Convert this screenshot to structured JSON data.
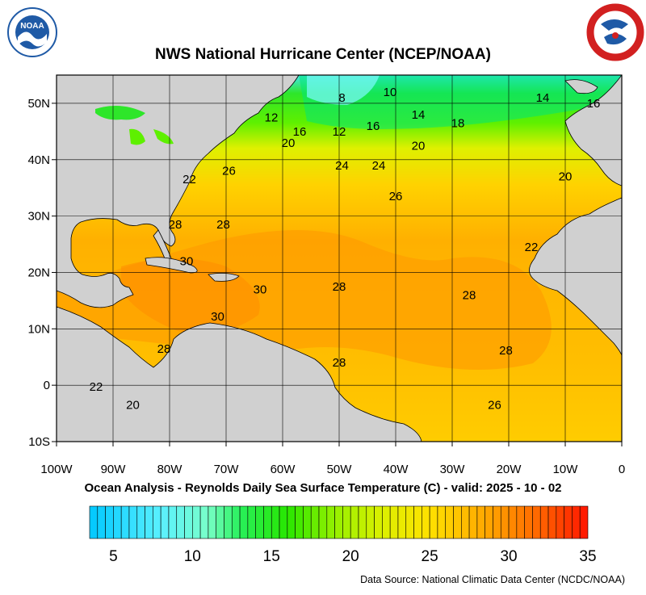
{
  "header": {
    "title": "NWS National Hurricane Center (NCEP/NOAA)",
    "left_logo": {
      "text": "NOAA",
      "ring_text": "NATIONAL OCEANIC AND ATMOSPHERIC ADMINISTRATION · U.S. DEPARTMENT OF COMMERCE ·",
      "color": "#1f5aa6"
    },
    "right_logo": {
      "ring_text": "NATIONAL WEATHER SERVICE",
      "ring_color": "#d22020",
      "inner_color": "#1f5aa6"
    }
  },
  "map": {
    "subtitle": "Ocean Analysis - Reynolds Daily Sea Surface Temperature (C) - valid: 2025 - 10 - 02",
    "lon_range": [
      -100,
      0
    ],
    "lat_range": [
      -10,
      55
    ],
    "lon_ticks": [
      {
        "value": -100,
        "label": "100W"
      },
      {
        "value": -90,
        "label": "90W"
      },
      {
        "value": -80,
        "label": "80W"
      },
      {
        "value": -70,
        "label": "70W"
      },
      {
        "value": -60,
        "label": "60W"
      },
      {
        "value": -50,
        "label": "50W"
      },
      {
        "value": -40,
        "label": "40W"
      },
      {
        "value": -30,
        "label": "30W"
      },
      {
        "value": -20,
        "label": "20W"
      },
      {
        "value": -10,
        "label": "10W"
      },
      {
        "value": 0,
        "label": "0"
      }
    ],
    "lat_ticks": [
      {
        "value": 50,
        "label": "50N"
      },
      {
        "value": 40,
        "label": "40N"
      },
      {
        "value": 30,
        "label": "30N"
      },
      {
        "value": 20,
        "label": "20N"
      },
      {
        "value": 10,
        "label": "10N"
      },
      {
        "value": 0,
        "label": "0"
      },
      {
        "value": -10,
        "label": "10S"
      }
    ],
    "land_color": "#d0d0d0",
    "contour_labels": [
      {
        "text": "10",
        "lon": -41,
        "lat": 52
      },
      {
        "text": "8",
        "lon": -49.5,
        "lat": 51
      },
      {
        "text": "14",
        "lon": -14,
        "lat": 51
      },
      {
        "text": "16",
        "lon": -5,
        "lat": 50
      },
      {
        "text": "12",
        "lon": -62,
        "lat": 47.5
      },
      {
        "text": "14",
        "lon": -36,
        "lat": 48
      },
      {
        "text": "18",
        "lon": -29,
        "lat": 46.5
      },
      {
        "text": "16",
        "lon": -44,
        "lat": 46
      },
      {
        "text": "16",
        "lon": -57,
        "lat": 45
      },
      {
        "text": "12",
        "lon": -50,
        "lat": 45
      },
      {
        "text": "20",
        "lon": -59,
        "lat": 43
      },
      {
        "text": "20",
        "lon": -36,
        "lat": 42.5
      },
      {
        "text": "24",
        "lon": -49.5,
        "lat": 39
      },
      {
        "text": "24",
        "lon": -43,
        "lat": 39
      },
      {
        "text": "26",
        "lon": -69.5,
        "lat": 38
      },
      {
        "text": "22",
        "lon": -76.5,
        "lat": 36.5
      },
      {
        "text": "20",
        "lon": -10,
        "lat": 37
      },
      {
        "text": "26",
        "lon": -40,
        "lat": 33.5
      },
      {
        "text": "28",
        "lon": -70.5,
        "lat": 28.5
      },
      {
        "text": "28",
        "lon": -79,
        "lat": 28.5
      },
      {
        "text": "22",
        "lon": -16,
        "lat": 24.5
      },
      {
        "text": "30",
        "lon": -77,
        "lat": 22
      },
      {
        "text": "30",
        "lon": -64,
        "lat": 17
      },
      {
        "text": "28",
        "lon": -50,
        "lat": 17.5
      },
      {
        "text": "28",
        "lon": -27,
        "lat": 16
      },
      {
        "text": "30",
        "lon": -71.5,
        "lat": 12.2
      },
      {
        "text": "28",
        "lon": -81,
        "lat": 6.5
      },
      {
        "text": "28",
        "lon": -20.5,
        "lat": 6.2
      },
      {
        "text": "28",
        "lon": -50,
        "lat": 4
      },
      {
        "text": "22",
        "lon": -93,
        "lat": -0.3
      },
      {
        "text": "20",
        "lon": -86.5,
        "lat": -3.5
      },
      {
        "text": "26",
        "lon": -22.5,
        "lat": -3.5
      }
    ]
  },
  "colorbar": {
    "vmin": 3.5,
    "vmax": 35,
    "step": 0.5,
    "labels": [
      {
        "value": 5,
        "label": "5"
      },
      {
        "value": 10,
        "label": "10"
      },
      {
        "value": 15,
        "label": "15"
      },
      {
        "value": 20,
        "label": "20"
      },
      {
        "value": 25,
        "label": "25"
      },
      {
        "value": 30,
        "label": "30"
      },
      {
        "value": 35,
        "label": "35"
      }
    ]
  },
  "footer": {
    "source": "Data Source: National Climatic Data Center (NCDC/NOAA)"
  }
}
